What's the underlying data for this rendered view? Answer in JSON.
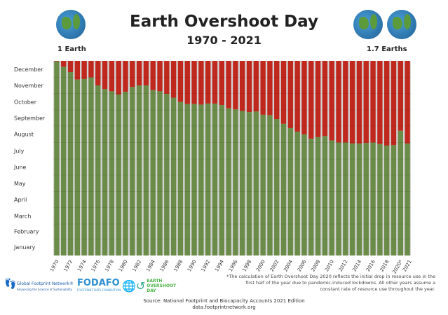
{
  "header": {
    "title": "Earth Overshoot Day",
    "subtitle": "1970 - 2021",
    "left_label": "1 Earth",
    "right_label": "1.7 Earths",
    "icons": [
      "globe-icon",
      "globe-icon",
      "globe-icon"
    ]
  },
  "chart_data": {
    "type": "bar",
    "title": "Earth Overshoot Day",
    "subtitle": "1970 - 2021",
    "stacked": true,
    "colors": {
      "before_overshoot": "#6a8c48",
      "after_overshoot": "#c0281e",
      "background": "#d4d4d4"
    },
    "y_ticks": [
      "January",
      "February",
      "March",
      "April",
      "May",
      "June",
      "July",
      "August",
      "September",
      "October",
      "November",
      "December"
    ],
    "x_ticks": [
      "1970",
      "1972",
      "1974",
      "1976",
      "1978",
      "1980",
      "1982",
      "1984",
      "1986",
      "1988",
      "1990",
      "1992",
      "1994",
      "1996",
      "1998",
      "2000",
      "2002",
      "2004",
      "2006",
      "2008",
      "2010",
      "2012",
      "2014",
      "2016",
      "2018",
      "2020*",
      "2021"
    ],
    "ylim": [
      "Jan 1",
      "Dec 31"
    ],
    "grid": true,
    "years": [
      1970,
      1971,
      1972,
      1973,
      1974,
      1975,
      1976,
      1977,
      1978,
      1979,
      1980,
      1981,
      1982,
      1983,
      1984,
      1985,
      1986,
      1987,
      1988,
      1989,
      1990,
      1991,
      1992,
      1993,
      1994,
      1995,
      1996,
      1997,
      1998,
      1999,
      2000,
      2001,
      2002,
      2003,
      2004,
      2005,
      2006,
      2007,
      2008,
      2009,
      2010,
      2011,
      2012,
      2013,
      2014,
      2015,
      2016,
      2017,
      2018,
      2019,
      2020,
      2021
    ],
    "overshoot_dates": [
      "12-30",
      "12-20",
      "12-10",
      "11-26",
      "11-27",
      "11-30",
      "11-15",
      "11-08",
      "11-04",
      "10-29",
      "11-03",
      "11-12",
      "11-15",
      "11-15",
      "11-06",
      "11-04",
      "10-30",
      "10-23",
      "10-15",
      "10-11",
      "10-11",
      "10-10",
      "10-12",
      "10-12",
      "10-09",
      "10-03",
      "10-01",
      "09-28",
      "09-26",
      "09-27",
      "09-21",
      "09-20",
      "09-13",
      "09-04",
      "08-27",
      "08-20",
      "08-15",
      "08-07",
      "08-10",
      "08-12",
      "08-04",
      "07-31",
      "07-31",
      "07-29",
      "07-29",
      "07-30",
      "07-31",
      "07-28",
      "07-25",
      "07-26",
      "08-22",
      "07-29"
    ]
  },
  "footer": {
    "note": "*The calculation of Earth Overshoot Day 2020 reflects the initial drop in resource use in the first half of the year due to pandemic-induced lockdowns. All other years assume a constant rate of resource use throughout the year.",
    "source": "Source: National Footprint and Biocapacity Accounts 2021 Edition",
    "url": "data.footprintnetwork.org",
    "logos": {
      "gfn": "Global Footprint Network®",
      "gfn_tag": "Advancing the Science of Sustainability",
      "fodafo": "FODAFO",
      "fodafo_tag": "FOOTPRINT DATA FOUNDATION",
      "eod": "EARTH OVERSHOOT DAY"
    }
  }
}
